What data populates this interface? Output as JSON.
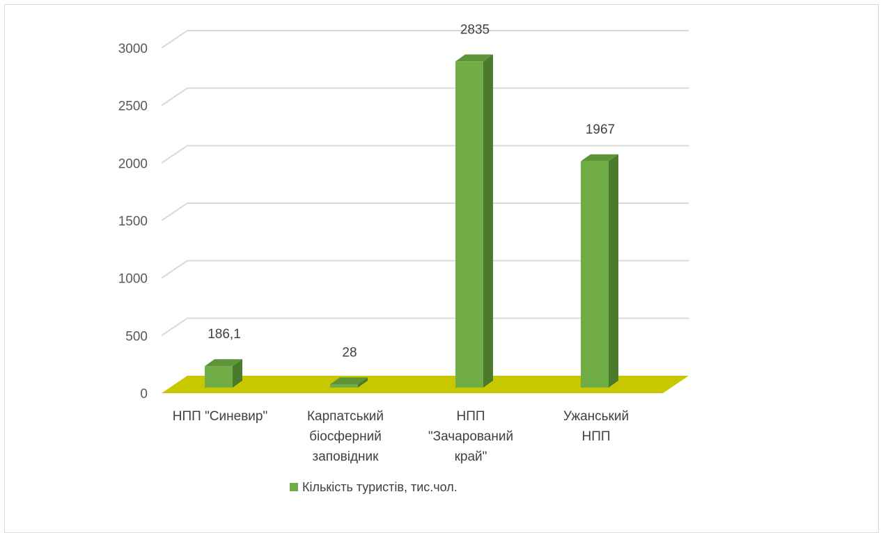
{
  "chart_data": {
    "type": "bar",
    "categories": [
      [
        "НПП \"Синевир\""
      ],
      [
        "Карпатський",
        "біосферний",
        "заповідник"
      ],
      [
        "НПП",
        "\"Зачарований",
        "край\""
      ],
      [
        "Ужанський",
        "НПП"
      ]
    ],
    "series": [
      {
        "name": "Кількість туристів, тис.чол.",
        "values": [
          186.1,
          28,
          2835,
          1967
        ],
        "labels": [
          "186,1",
          "28",
          "2835",
          "1967"
        ],
        "color": "#70ad47"
      }
    ],
    "ylim": [
      0,
      3000
    ],
    "yticks": [
      "0",
      "500",
      "1000",
      "1500",
      "2000",
      "2500",
      "3000"
    ],
    "grid": true,
    "floor_color": "#c8c800",
    "legend_position": "bottom"
  }
}
